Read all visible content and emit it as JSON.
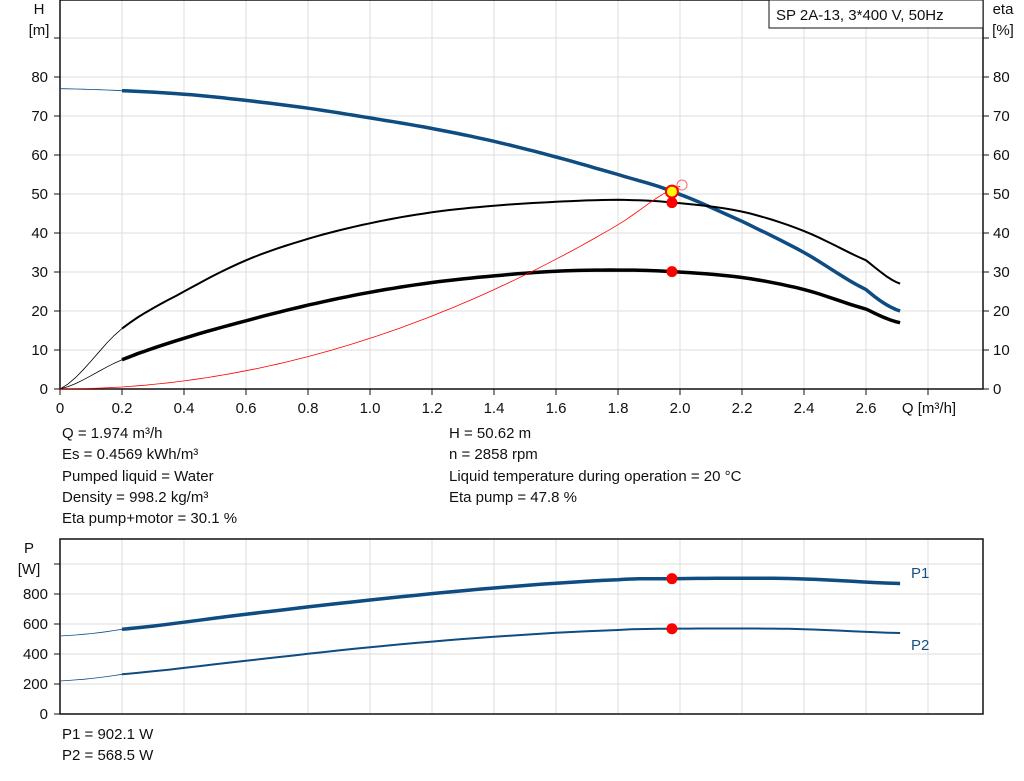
{
  "chart_data": [
    {
      "type": "line",
      "title": "SP 2A-13, 3*400 V, 50Hz",
      "xlabel": "Q [m³/h]",
      "ylabel_left": [
        "H",
        "[m]"
      ],
      "ylabel_right": [
        "eta",
        "[%]"
      ],
      "xlim": [
        0,
        2.98
      ],
      "ylim": [
        0,
        90
      ],
      "x_ticks": [
        "0",
        "0.2",
        "0.4",
        "0.6",
        "0.8",
        "1.0",
        "1.2",
        "1.4",
        "1.6",
        "1.8",
        "2.0",
        "2.2",
        "2.4",
        "2.6"
      ],
      "y_ticks": [
        "0",
        "10",
        "20",
        "30",
        "40",
        "50",
        "60",
        "70",
        "80"
      ],
      "grid": true,
      "series": [
        {
          "key": "H",
          "color": "#0f4c81",
          "x": [
            0,
            0.2,
            0.4,
            0.6,
            0.8,
            1.0,
            1.2,
            1.4,
            1.6,
            1.8,
            1.974,
            2.2,
            2.4,
            2.6,
            2.71
          ],
          "values": [
            77,
            76.5,
            75.6,
            74,
            72,
            69.5,
            66.8,
            63.5,
            59.5,
            55,
            50.62,
            43,
            35,
            25.5,
            20
          ]
        },
        {
          "key": "eta_pump",
          "color": "#000000",
          "x": [
            0,
            0.2,
            0.4,
            0.6,
            0.8,
            1.0,
            1.2,
            1.4,
            1.6,
            1.8,
            1.974,
            2.2,
            2.4,
            2.6,
            2.71
          ],
          "values": [
            0,
            15.5,
            25,
            33,
            38.5,
            42.5,
            45.3,
            47,
            48,
            48.5,
            47.8,
            45.5,
            40.5,
            33,
            27
          ]
        },
        {
          "key": "eta_pump_motor",
          "color": "#000000",
          "x": [
            0,
            0.2,
            0.4,
            0.6,
            0.8,
            1.0,
            1.2,
            1.4,
            1.6,
            1.8,
            1.974,
            2.2,
            2.4,
            2.6,
            2.71
          ],
          "values": [
            0,
            7.5,
            13,
            17.5,
            21.5,
            24.8,
            27.3,
            29,
            30.2,
            30.5,
            30.1,
            28.6,
            25.5,
            20.5,
            17
          ]
        },
        {
          "key": "system_curve",
          "color": "#ff0000",
          "x": [
            0,
            0.2,
            0.4,
            0.6,
            0.8,
            1.0,
            1.2,
            1.4,
            1.6,
            1.8,
            2.0
          ],
          "values": [
            0,
            0.52,
            2.08,
            4.68,
            8.32,
            13,
            18.72,
            25.48,
            33.28,
            42.12,
            52
          ]
        }
      ],
      "duty_point": {
        "Q": 1.974,
        "H": 50.62,
        "eta_pump": 47.8,
        "eta_pump_motor": 30.1
      }
    },
    {
      "type": "line",
      "ylabel": [
        "P",
        "[W]"
      ],
      "xlim": [
        0,
        2.98
      ],
      "ylim": [
        0,
        1170
      ],
      "y_ticks": [
        "0",
        "200",
        "400",
        "600",
        "800"
      ],
      "grid": true,
      "series": [
        {
          "name": "P1",
          "color": "#0f4c81",
          "x": [
            0,
            0.2,
            0.6,
            1.0,
            1.4,
            1.8,
            1.974,
            2.2,
            2.4,
            2.71
          ],
          "values": [
            520,
            565,
            665,
            760,
            840,
            895,
            902.1,
            905,
            900,
            870
          ]
        },
        {
          "name": "P2",
          "color": "#0f4c81",
          "x": [
            0,
            0.2,
            0.6,
            1.0,
            1.4,
            1.8,
            1.974,
            2.2,
            2.4,
            2.71
          ],
          "values": [
            220,
            265,
            355,
            445,
            515,
            560,
            568.5,
            570,
            565,
            540
          ]
        }
      ]
    }
  ],
  "info_left": [
    "Q = 1.974 m³/h",
    "Es = 0.4569 kWh/m³",
    "Pumped liquid = Water",
    "Density = 998.2 kg/m³",
    "Eta pump+motor = 30.1 %"
  ],
  "info_right": [
    "H = 50.62 m",
    "n = 2858 rpm",
    "Liquid temperature during operation = 20 °C",
    "Eta pump = 47.8 %"
  ],
  "power_info": [
    "P1 = 902.1 W",
    "P2 = 568.5 W"
  ]
}
